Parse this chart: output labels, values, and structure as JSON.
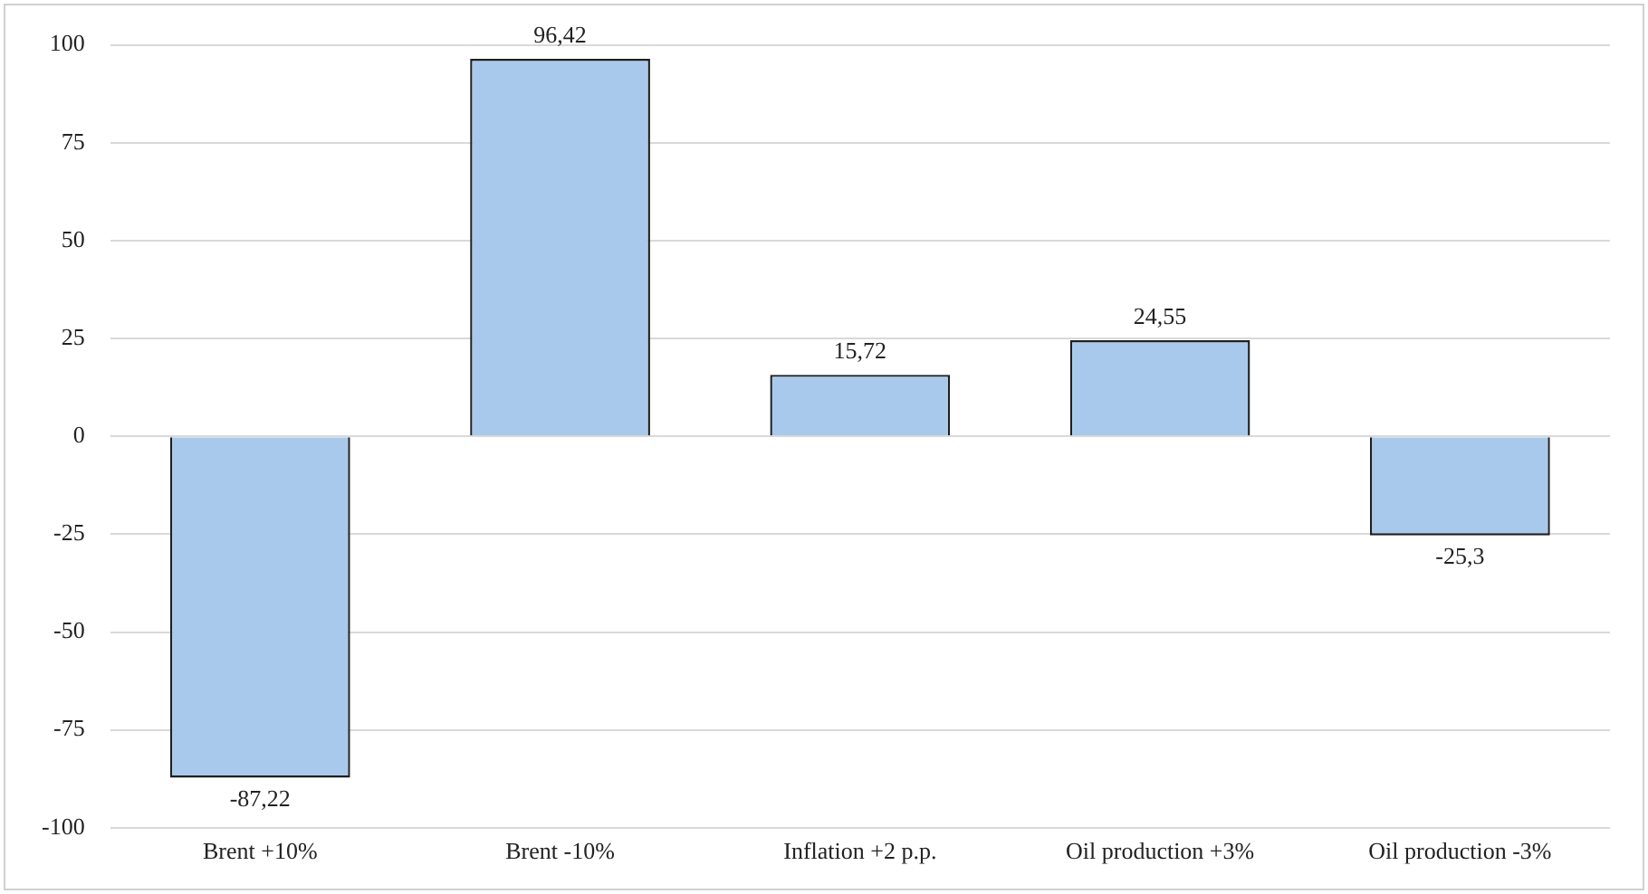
{
  "chart_data": {
    "type": "bar",
    "categories": [
      "Brent +10%",
      "Brent -10%",
      "Inflation +2 p.p.",
      "Oil production +3%",
      "Oil production -3%"
    ],
    "values": [
      -87.22,
      96.42,
      15.72,
      24.55,
      -25.3
    ],
    "value_labels": [
      "-87,22",
      "96,42",
      "15,72",
      "24,55",
      "-25,3"
    ],
    "color": "#a9c9ec",
    "ylim": [
      -100,
      100
    ],
    "yticks": [
      -100,
      -75,
      -50,
      -25,
      0,
      25,
      50,
      75,
      100
    ],
    "grid": "y",
    "legend": false
  }
}
